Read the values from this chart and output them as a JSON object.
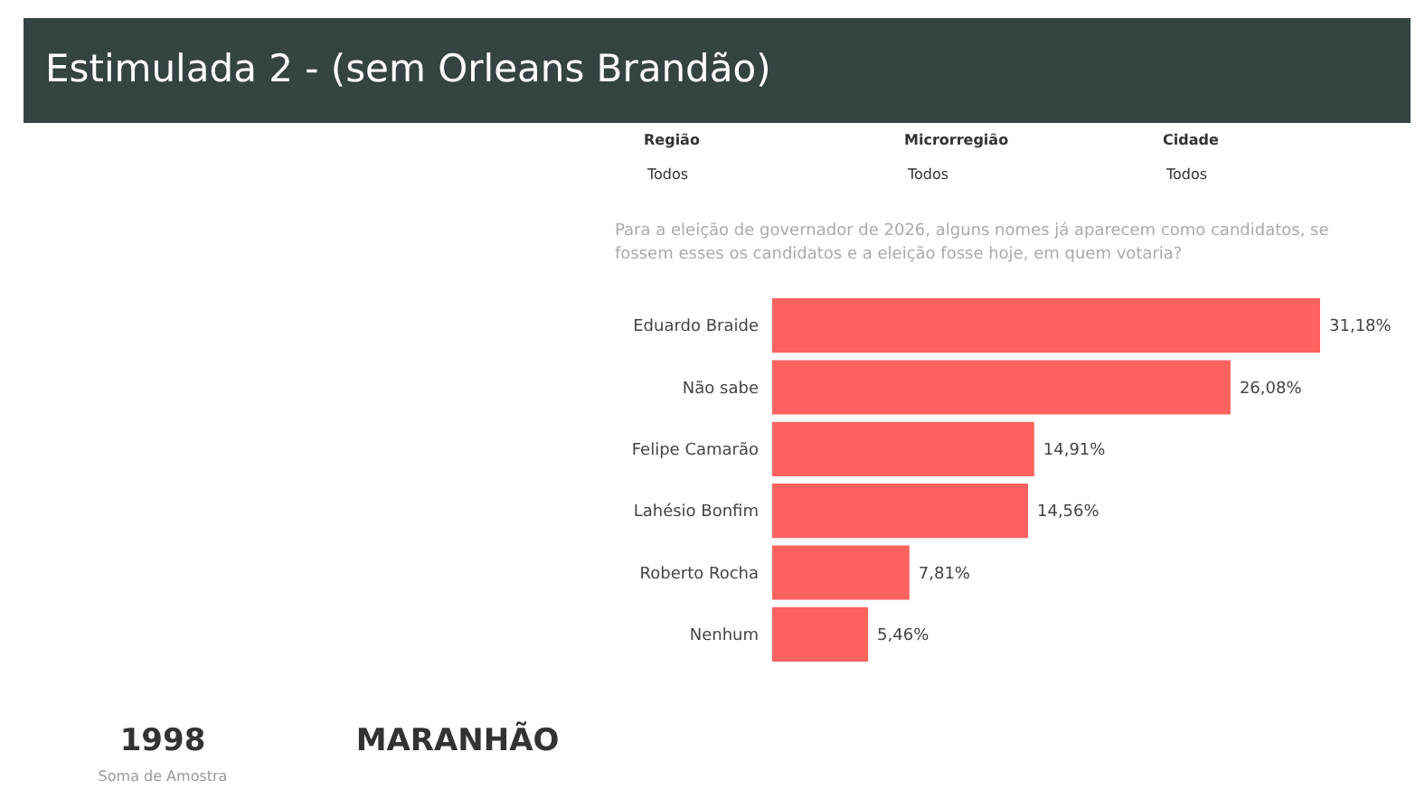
{
  "chart_data": {
    "type": "bar",
    "orientation": "horizontal",
    "title": "Estimulada 2 - (sem Orleans Brandão)",
    "categories": [
      "Eduardo Braide",
      "Não sabe",
      "Felipe Camarão",
      "Lahésio Bonfim",
      "Roberto Rocha",
      "Nenhum"
    ],
    "values": [
      31.18,
      26.08,
      14.91,
      14.56,
      7.81,
      5.46
    ],
    "value_labels": [
      "31,18%",
      "26,08%",
      "14,91%",
      "14,56%",
      "7,81%",
      "5,46%"
    ],
    "color": "#fd625e",
    "tick_labels": "y",
    "grid": false,
    "annotations": [
      "Região",
      "Todos",
      "Microrregião",
      "Todos",
      "Cidade",
      "Todos",
      "Para a eleição de governador de 2026, alguns nomes já aparecem como candidatos, se fossem esses os candidatos e a eleição fosse hoje, em quem votaria?",
      "1998",
      "Soma de Amostra",
      "MARANHÃO"
    ]
  }
}
